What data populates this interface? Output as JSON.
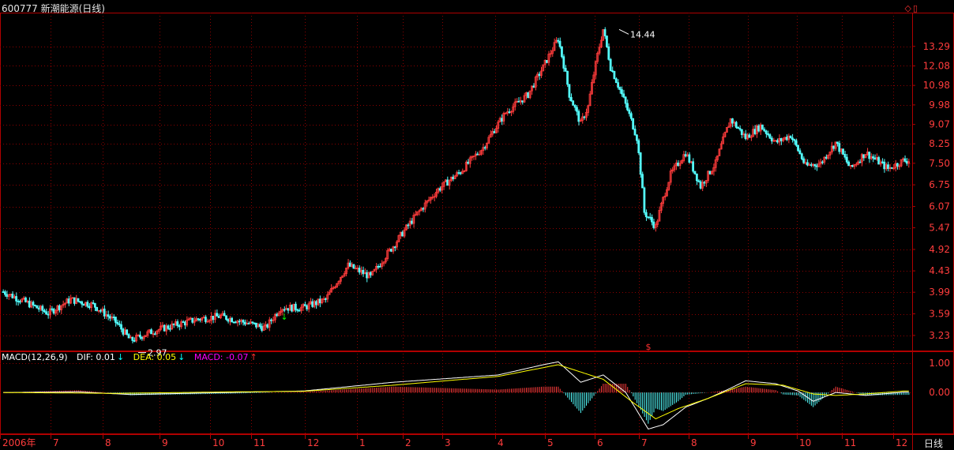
{
  "header": {
    "title": "600777 新潮能源(日线)"
  },
  "macd_legend": {
    "name": "MACD(12,26,9)",
    "dif": "DIF: 0.01",
    "dif_arrow": "↓",
    "dea": "DEA: 0.05",
    "dea_arrow": "↓",
    "macd": "MACD: -0.07",
    "macd_arrow": "↑"
  },
  "period_label": "日线",
  "colors": {
    "up": "#ff3c3c",
    "down": "#54ffff",
    "grid": "#8b0000",
    "axis_text": "#ff3c3c",
    "dif": "#ffffff",
    "dea": "#ffff00"
  },
  "chart_data": [
    {
      "type": "candlestick",
      "title": "600777 新潮能源(日线)",
      "y_scale": "log",
      "ylim": [
        3.0,
        15.2
      ],
      "y_ticks": [
        "3.23",
        "3.59",
        "3.99",
        "4.43",
        "4.92",
        "5.47",
        "6.07",
        "6.75",
        "7.50",
        "8.25",
        "9.07",
        "9.98",
        "10.98",
        "12.08",
        "13.29"
      ],
      "x_ticks": [
        "2006年",
        "7",
        "8",
        "9",
        "10",
        "11",
        "12",
        "1",
        "2",
        "3",
        "4",
        "5",
        "6",
        "7",
        "8",
        "9",
        "10",
        "11",
        "12"
      ],
      "annotations": [
        {
          "text": "2.97",
          "kind": "low",
          "value": 2.97
        },
        {
          "text": "14.44",
          "kind": "high",
          "value": 14.44
        },
        {
          "text": "$",
          "kind": "marker"
        }
      ],
      "price_path": [
        [
          0,
          4.0
        ],
        [
          3,
          3.8
        ],
        [
          6,
          3.6
        ],
        [
          9,
          3.85
        ],
        [
          12,
          3.75
        ],
        [
          15,
          3.45
        ],
        [
          17,
          3.15
        ],
        [
          20,
          3.3
        ],
        [
          23,
          3.4
        ],
        [
          26,
          3.5
        ],
        [
          29,
          3.55
        ],
        [
          32,
          3.45
        ],
        [
          35,
          3.35
        ],
        [
          37,
          3.7
        ],
        [
          40,
          3.7
        ],
        [
          43,
          3.85
        ],
        [
          46,
          4.55
        ],
        [
          49,
          4.3
        ],
        [
          52,
          5.0
        ],
        [
          55,
          5.8
        ],
        [
          58,
          6.6
        ],
        [
          61,
          7.2
        ],
        [
          64,
          8.1
        ],
        [
          67,
          9.6
        ],
        [
          70,
          10.5
        ],
        [
          72,
          12.0
        ],
        [
          74,
          13.8
        ],
        [
          75.5,
          10.5
        ],
        [
          77,
          9.1
        ],
        [
          78,
          9.9
        ],
        [
          80,
          14.44
        ],
        [
          81,
          12.0
        ],
        [
          83,
          10.0
        ],
        [
          84.5,
          8.5
        ],
        [
          85.5,
          5.9
        ],
        [
          87,
          5.5
        ],
        [
          89,
          7.1
        ],
        [
          91,
          7.9
        ],
        [
          93,
          6.7
        ],
        [
          95,
          7.5
        ],
        [
          97,
          9.3
        ],
        [
          99,
          8.5
        ],
        [
          101,
          9.0
        ],
        [
          103,
          8.3
        ],
        [
          105,
          8.6
        ],
        [
          107,
          7.4
        ],
        [
          109,
          7.5
        ],
        [
          111,
          8.3
        ],
        [
          113,
          7.3
        ],
        [
          115,
          7.9
        ],
        [
          118,
          7.3
        ],
        [
          120,
          7.6
        ]
      ]
    },
    {
      "type": "bar",
      "title": "MACD(12,26,9)",
      "y_ticks": [
        "1.00",
        "0.00"
      ],
      "ylim": [
        -1.4,
        1.3
      ],
      "series": [
        {
          "name": "DIF",
          "value": 0.01
        },
        {
          "name": "DEA",
          "value": 0.05
        },
        {
          "name": "MACD",
          "value": -0.07
        }
      ],
      "dif_path": [
        [
          0,
          0.0
        ],
        [
          10,
          0.02
        ],
        [
          17,
          -0.07
        ],
        [
          30,
          0.0
        ],
        [
          40,
          0.05
        ],
        [
          52,
          0.35
        ],
        [
          66,
          0.6
        ],
        [
          72,
          0.95
        ],
        [
          74,
          1.05
        ],
        [
          77,
          0.35
        ],
        [
          80,
          0.6
        ],
        [
          83,
          0.0
        ],
        [
          86,
          -1.25
        ],
        [
          88,
          -1.1
        ],
        [
          91,
          -0.5
        ],
        [
          94,
          -0.2
        ],
        [
          97,
          0.15
        ],
        [
          99,
          0.4
        ],
        [
          103,
          0.3
        ],
        [
          106,
          0.05
        ],
        [
          108,
          -0.3
        ],
        [
          111,
          0.0
        ],
        [
          115,
          -0.1
        ],
        [
          120,
          0.01
        ]
      ],
      "dea_path": [
        [
          0,
          0.0
        ],
        [
          15,
          -0.03
        ],
        [
          30,
          0.02
        ],
        [
          40,
          0.04
        ],
        [
          52,
          0.25
        ],
        [
          66,
          0.55
        ],
        [
          72,
          0.85
        ],
        [
          74,
          0.95
        ],
        [
          77,
          0.7
        ],
        [
          80,
          0.45
        ],
        [
          84,
          -0.35
        ],
        [
          87,
          -0.9
        ],
        [
          90,
          -0.55
        ],
        [
          94,
          -0.2
        ],
        [
          99,
          0.3
        ],
        [
          104,
          0.25
        ],
        [
          108,
          -0.05
        ],
        [
          111,
          -0.1
        ],
        [
          115,
          -0.05
        ],
        [
          120,
          0.05
        ]
      ]
    }
  ]
}
